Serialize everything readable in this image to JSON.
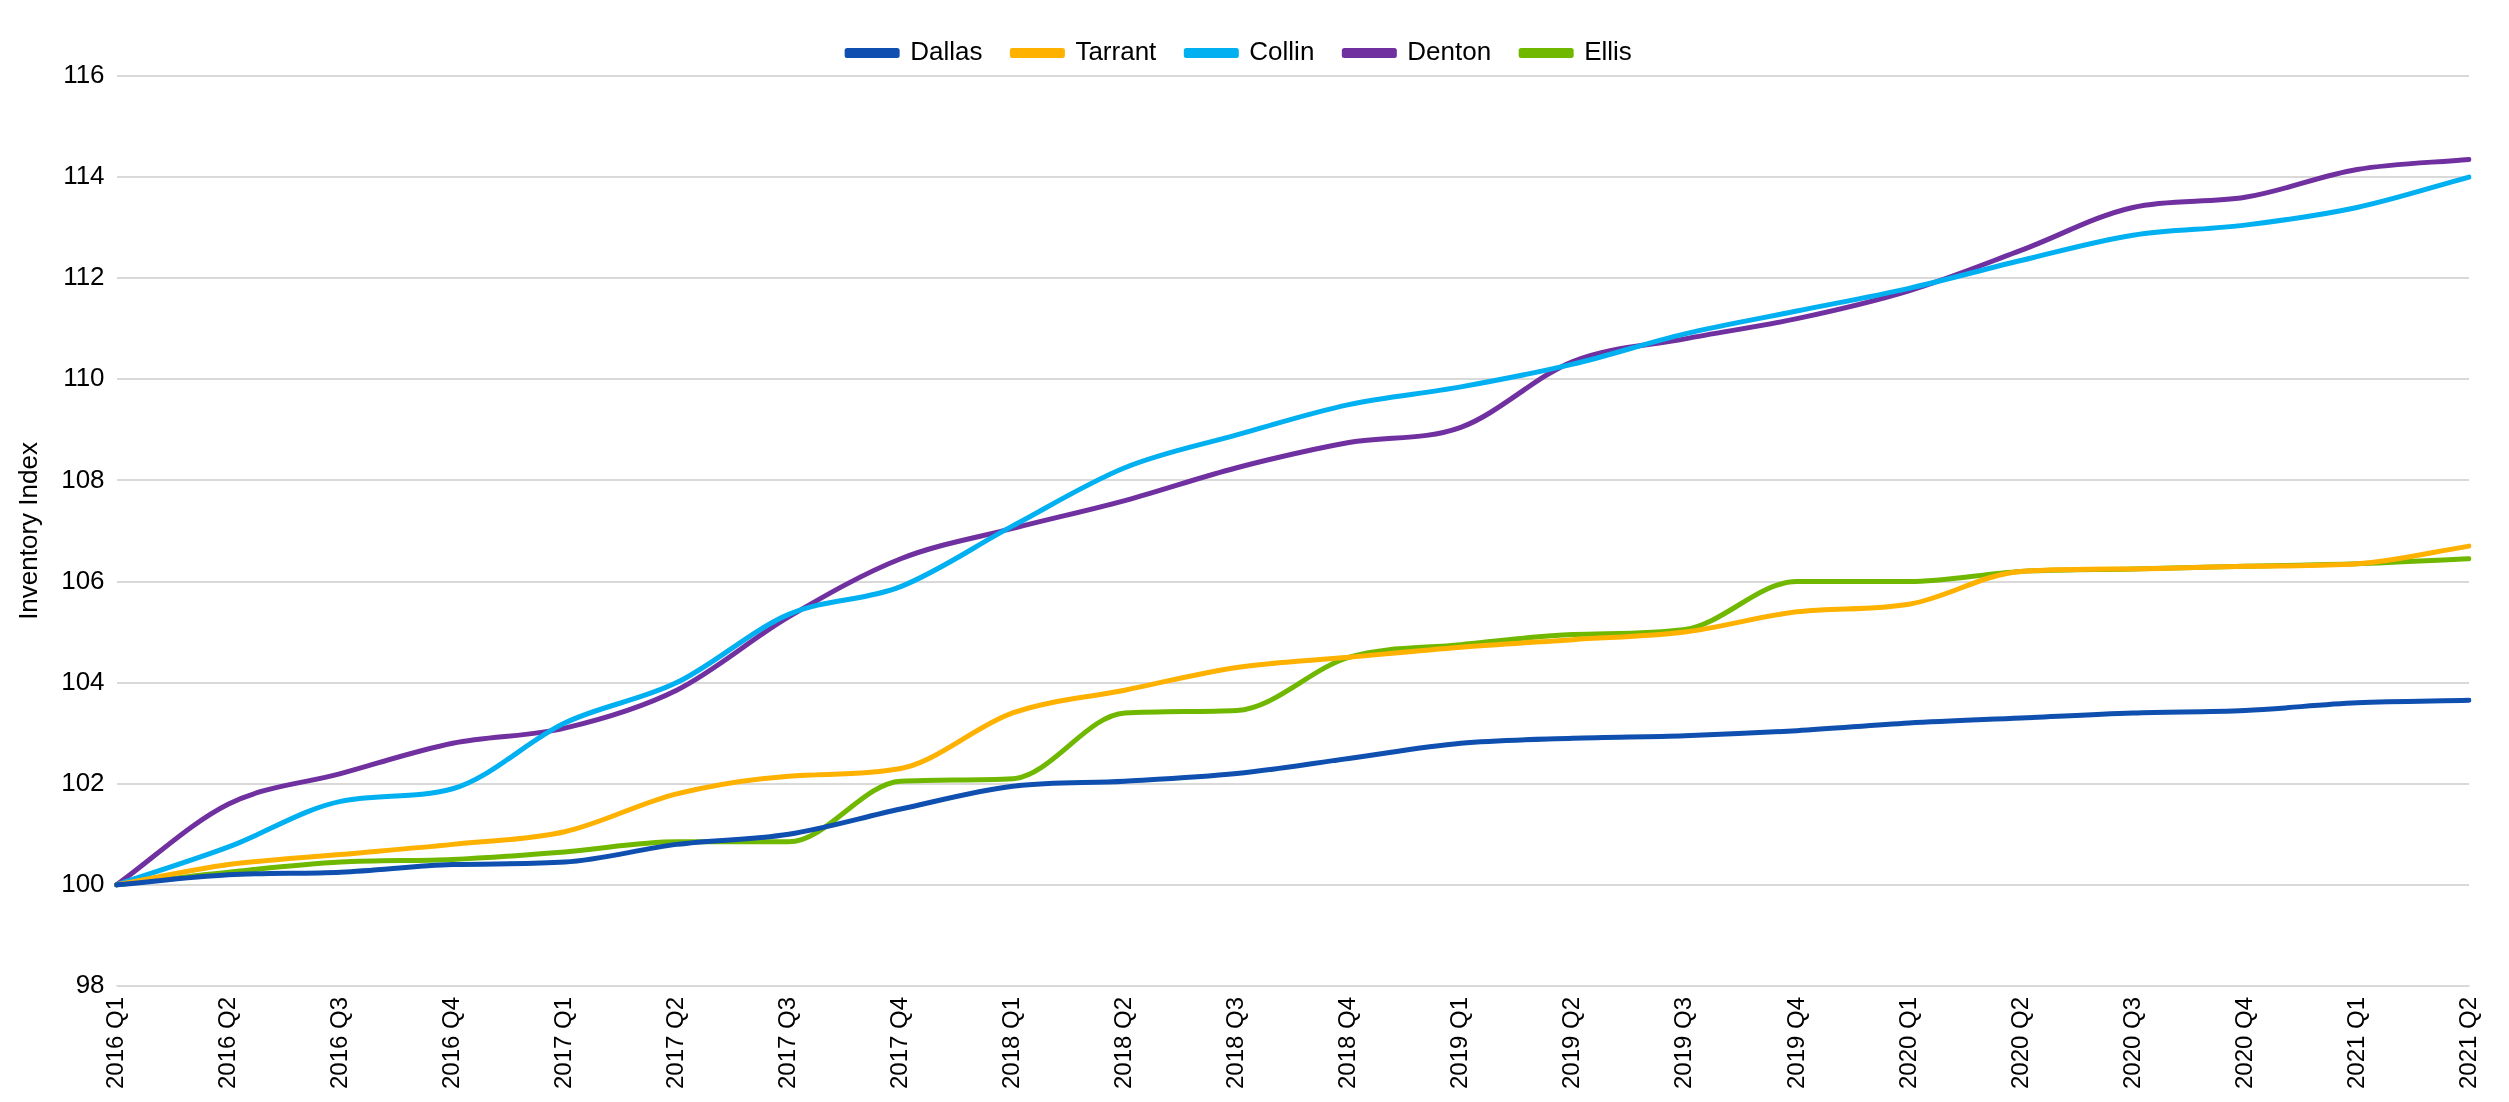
{
  "chart_data": {
    "type": "line",
    "ylabel": "Inventory Index",
    "categories": [
      "2016 Q1",
      "2016 Q2",
      "2016 Q3",
      "2016 Q4",
      "2017 Q1",
      "2017 Q2",
      "2017 Q3",
      "2017 Q4",
      "2018 Q1",
      "2018 Q2",
      "2018 Q3",
      "2018 Q4",
      "2019 Q1",
      "2019 Q2",
      "2019 Q3",
      "2019 Q4",
      "2020 Q1",
      "2020 Q2",
      "2020 Q3",
      "2020 Q4",
      "2021 Q1",
      "2021 Q2"
    ],
    "series": [
      {
        "name": "Dallas",
        "color": "#0e4faf",
        "values": [
          100,
          100.2,
          100.25,
          100.4,
          100.45,
          100.8,
          101.0,
          101.5,
          101.95,
          102.05,
          102.2,
          102.5,
          102.8,
          102.9,
          102.95,
          103.05,
          103.2,
          103.3,
          103.4,
          103.45,
          103.6,
          103.65
        ]
      },
      {
        "name": "Tarrant",
        "color": "#ffb100",
        "values": [
          100,
          100.4,
          100.6,
          100.8,
          101.05,
          101.8,
          102.15,
          102.3,
          103.4,
          103.85,
          104.3,
          104.5,
          104.7,
          104.85,
          105.0,
          105.4,
          105.55,
          106.2,
          106.25,
          106.3,
          106.35,
          106.7
        ]
      },
      {
        "name": "Collin",
        "color": "#00b0f0",
        "values": [
          100,
          100.75,
          101.65,
          101.9,
          103.2,
          104.0,
          105.35,
          105.9,
          107.1,
          108.25,
          108.9,
          109.5,
          109.85,
          110.3,
          110.9,
          111.35,
          111.8,
          112.35,
          112.85,
          113.05,
          113.4,
          114.0
        ]
      },
      {
        "name": "Denton",
        "color": "#7030a0",
        "values": [
          100,
          101.6,
          102.2,
          102.8,
          103.1,
          103.85,
          105.3,
          106.45,
          107.05,
          107.6,
          108.25,
          108.75,
          109.05,
          110.35,
          110.8,
          111.2,
          111.75,
          112.55,
          113.4,
          113.6,
          114.15,
          114.35
        ]
      },
      {
        "name": "Ellis",
        "color": "#70b800",
        "values": [
          100,
          100.25,
          100.45,
          100.5,
          100.65,
          100.85,
          100.85,
          102.05,
          102.1,
          103.4,
          103.45,
          104.5,
          104.75,
          104.95,
          105.05,
          106.0,
          106.0,
          106.2,
          106.25,
          106.3,
          106.35,
          106.45
        ]
      }
    ],
    "ylim": [
      98,
      116
    ],
    "yticks": [
      98,
      100,
      102,
      104,
      106,
      108,
      110,
      112,
      114,
      116
    ],
    "grid": "y",
    "legend": "top",
    "marker": "none",
    "line_style": "solid"
  }
}
